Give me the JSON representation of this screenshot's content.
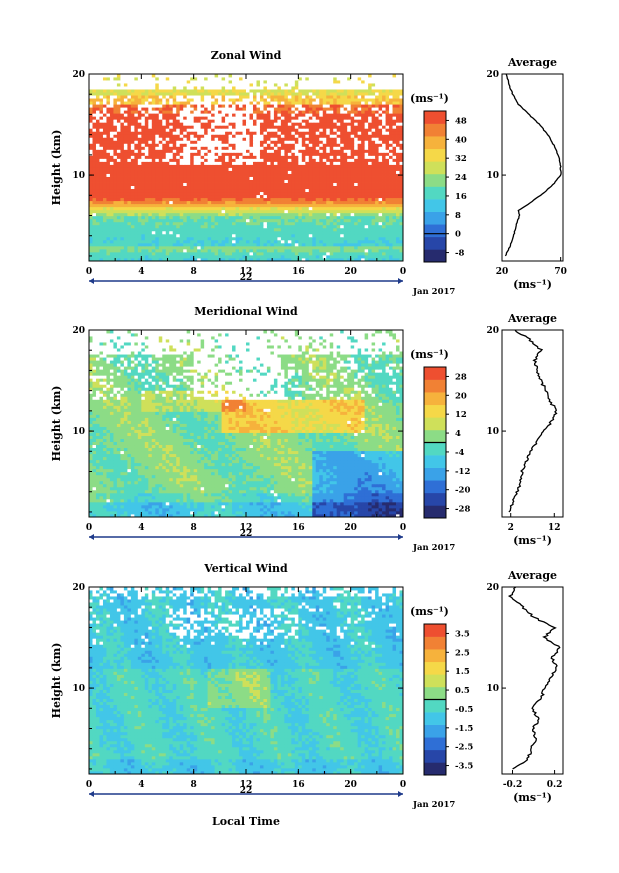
{
  "colors": {
    "scale": [
      "#262b6e",
      "#2746a8",
      "#2f6fd6",
      "#3aa2e8",
      "#42c6e8",
      "#52d8c2",
      "#8cdc86",
      "#cfe05a",
      "#f5d848",
      "#f6b23c",
      "#f18134",
      "#ee4f30"
    ],
    "white_gap": "#ffffff",
    "axis": "#000000",
    "zero_line": "#000000",
    "nav_line": "#1e3a8a"
  },
  "shared": {
    "time_ticks": [
      "0",
      "4",
      "8",
      "12",
      "16",
      "20",
      "0"
    ],
    "day_label": "22",
    "month_label": "Jan 2017",
    "height_ticks": [
      "20",
      "10"
    ],
    "ylabel": "Height (km)",
    "xlabel": "Local Time",
    "unit": "(ms⁻¹)",
    "avg_title": "Average",
    "avg_unit": "(ms⁻¹)"
  },
  "chart_data": [
    {
      "type": "heatmap",
      "title": "Zonal Wind",
      "xlim": [
        0,
        24
      ],
      "ylim": [
        1.5,
        20
      ],
      "colorbar": {
        "ticks": [
          "48",
          "40",
          "32",
          "24",
          "16",
          "8",
          "0",
          "-8"
        ],
        "range": [
          -12,
          52
        ]
      },
      "profile": {
        "xticks": [
          "20",
          "70"
        ],
        "xlim": [
          20,
          72
        ],
        "heights": [
          2,
          3,
          4,
          5,
          6,
          6.5,
          7,
          8,
          9,
          10,
          11,
          12,
          13,
          14,
          15,
          16,
          17,
          18,
          19,
          20
        ],
        "values": [
          23,
          27,
          30,
          32,
          35,
          34,
          41,
          53,
          63,
          70,
          70,
          68,
          64,
          59,
          52,
          43,
          34,
          29,
          26,
          24
        ]
      }
    },
    {
      "type": "heatmap",
      "title": "Meridional Wind",
      "xlim": [
        0,
        24
      ],
      "ylim": [
        1.5,
        20
      ],
      "colorbar": {
        "ticks": [
          "28",
          "20",
          "12",
          "4",
          "-4",
          "-12",
          "-20",
          "-28"
        ],
        "range": [
          -32,
          32
        ]
      },
      "profile": {
        "xticks": [
          "2",
          "12"
        ],
        "xlim": [
          0,
          14
        ],
        "heights": [
          2,
          3,
          4,
          5,
          6,
          7,
          8,
          9,
          10,
          11,
          12,
          13,
          14,
          15,
          16,
          17,
          18,
          19,
          20
        ],
        "values": [
          1.5,
          2.5,
          3.5,
          4.2,
          4.5,
          5.5,
          6.5,
          8,
          9.5,
          11.5,
          12.5,
          11,
          10,
          9,
          8,
          7.5,
          9,
          6.5,
          3
        ]
      }
    },
    {
      "type": "heatmap",
      "title": "Vertical Wind",
      "xlim": [
        0,
        24
      ],
      "ylim": [
        1.5,
        20
      ],
      "colorbar": {
        "ticks": [
          "3.5",
          "2.5",
          "1.5",
          "0.5",
          "-0.5",
          "-1.5",
          "-2.5",
          "-3.5"
        ],
        "range": [
          -4,
          4
        ]
      },
      "profile": {
        "xticks": [
          "-0.2",
          "0.2"
        ],
        "xlim": [
          -0.3,
          0.28
        ],
        "heights": [
          2,
          3,
          4,
          5,
          6,
          7,
          8,
          9,
          10,
          11,
          12,
          13,
          14,
          15,
          16,
          17,
          18,
          19,
          20
        ],
        "values": [
          -0.2,
          -0.05,
          -0.02,
          0.02,
          0.0,
          0.05,
          -0.02,
          0.08,
          0.1,
          0.16,
          0.22,
          0.18,
          0.25,
          0.1,
          0.2,
          0.0,
          -0.1,
          -0.22,
          -0.18
        ]
      }
    }
  ]
}
